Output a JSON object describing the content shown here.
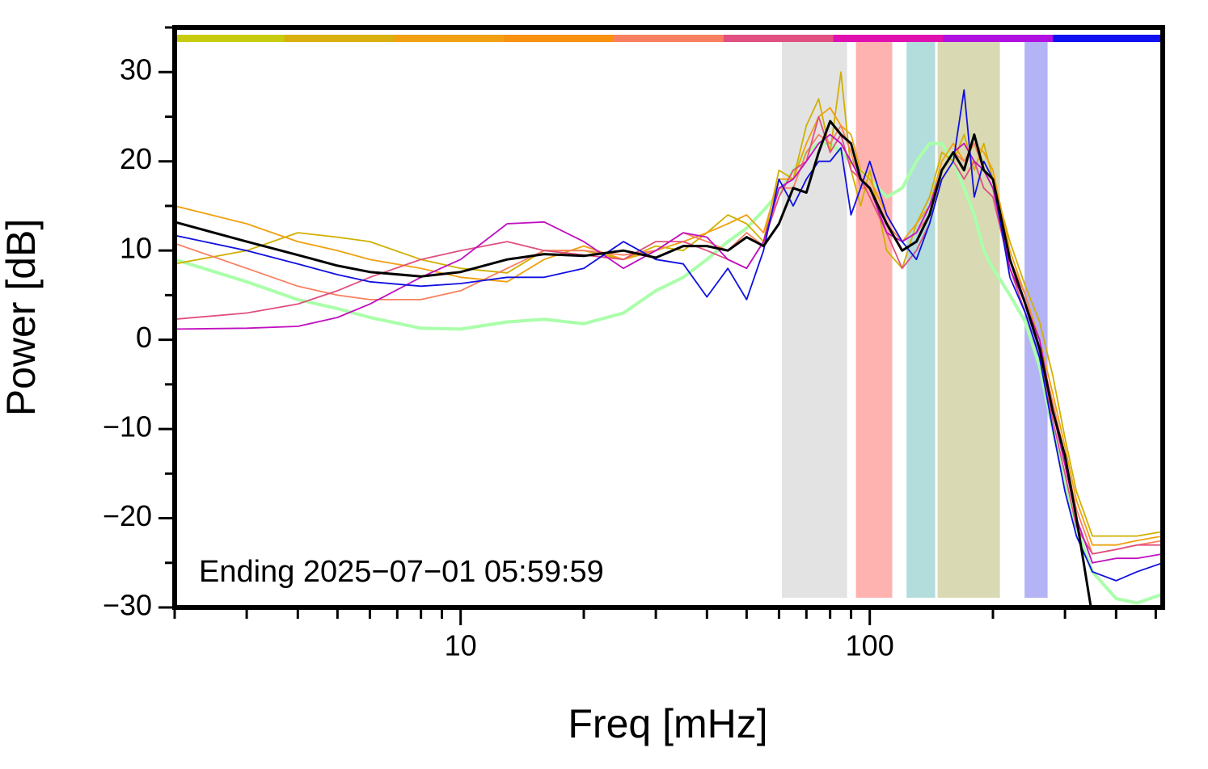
{
  "chart_data": {
    "type": "line",
    "xlabel": "Freq [mHz]",
    "ylabel": "Power [dB]",
    "annotation": "Ending 2025−07−01 05:59:59",
    "xscale": "log",
    "xlim": [
      2,
      520
    ],
    "ylim": [
      -30,
      35
    ],
    "xticks": [
      10,
      100
    ],
    "xminor": [
      2,
      3,
      4,
      5,
      6,
      7,
      8,
      9,
      20,
      30,
      40,
      50,
      60,
      70,
      80,
      90,
      200,
      300,
      400,
      500
    ],
    "yticks": [
      {
        "value": -30,
        "label": "−30"
      },
      {
        "value": -20,
        "label": "−20"
      },
      {
        "value": -10,
        "label": "−10"
      },
      0,
      10,
      20,
      30
    ],
    "yminor": [
      -25,
      -15,
      -5,
      5,
      15,
      25,
      35
    ],
    "color_bar": [
      "#c8cc10",
      "#d8b010",
      "#f0a010",
      "#f89010",
      "#f88060",
      "#e05080",
      "#e010b0",
      "#b010e0",
      "#1010f0"
    ],
    "bands": [
      {
        "x": [
          61,
          88
        ],
        "color": "#e3e3e3"
      },
      {
        "x": [
          92.5,
          113.5
        ],
        "color": "#ffb3b0"
      },
      {
        "x": [
          123,
          144.5
        ],
        "color": "#b3dcdc"
      },
      {
        "x": [
          146.5,
          208
        ],
        "color": "#d9d9b3"
      },
      {
        "x": [
          239,
          272
        ],
        "color": "#b3b3f5"
      }
    ],
    "x": [
      2,
      3,
      4,
      5,
      6,
      8,
      10,
      13,
      16,
      20,
      25,
      30,
      35,
      40,
      45,
      50,
      55,
      60,
      65,
      70,
      75,
      80,
      85,
      90,
      95,
      100,
      110,
      120,
      130,
      140,
      150,
      160,
      170,
      180,
      190,
      200,
      220,
      240,
      260,
      280,
      300,
      320,
      350,
      400,
      450,
      520
    ],
    "series": [
      {
        "color": "#aaffaa",
        "width": 4,
        "values": [
          9,
          6.5,
          4.5,
          3.5,
          2.5,
          1.3,
          1.2,
          2,
          2.3,
          1.8,
          3,
          5.5,
          7,
          9,
          11,
          12.5,
          14.5,
          16.5,
          19,
          21,
          22,
          22,
          21,
          20,
          19,
          18,
          16,
          17,
          20,
          22,
          22,
          20,
          17,
          14,
          10,
          8,
          5,
          2,
          -3,
          -10,
          -16,
          -21,
          -26,
          -29,
          -29.5,
          -28.5
        ]
      },
      {
        "color": "#d0b000",
        "width": 1.8,
        "values": [
          8.5,
          10,
          12,
          11.5,
          11,
          9,
          8,
          7.5,
          10,
          10,
          9,
          10.5,
          10,
          12,
          14,
          13,
          11,
          19,
          18,
          24,
          27,
          21,
          30,
          19,
          15,
          19,
          10,
          8,
          13,
          16,
          21,
          20,
          23,
          19,
          22,
          18,
          11,
          6,
          2,
          -4,
          -11,
          -17,
          -22,
          -22,
          -22,
          -21.5
        ]
      },
      {
        "color": "#f0a010",
        "width": 1.8,
        "values": [
          15,
          13,
          11,
          10,
          9,
          8,
          7,
          6.5,
          9,
          10.5,
          9,
          10,
          11,
          12,
          13,
          14,
          12,
          18,
          18,
          22,
          25,
          26,
          24,
          23,
          19,
          18,
          14,
          11,
          13,
          15,
          20,
          22,
          20,
          22,
          21,
          19,
          10,
          5,
          0,
          -6,
          -12,
          -18,
          -23,
          -23,
          -22.5,
          -22
        ]
      },
      {
        "color": "#f88060",
        "width": 1.8,
        "values": [
          10.8,
          8,
          6,
          5,
          4.5,
          4.5,
          5.5,
          8,
          10,
          10,
          9.5,
          10,
          12,
          11,
          10,
          12,
          10.5,
          17,
          17,
          21,
          23,
          22,
          24,
          21,
          17,
          17,
          13,
          11,
          12,
          14,
          19,
          21,
          20,
          22,
          19,
          18,
          9,
          5,
          -1,
          -7,
          -13,
          -19,
          -24,
          -23.5,
          -23,
          -22.5
        ]
      },
      {
        "color": "#e05080",
        "width": 1.8,
        "values": [
          2.3,
          3,
          4,
          5.5,
          7,
          9,
          10,
          11,
          10,
          9.5,
          9,
          11,
          11,
          10,
          9,
          8,
          11,
          16,
          19,
          20,
          25,
          21,
          23,
          19,
          18,
          16,
          12,
          8,
          10,
          13,
          18,
          20,
          18,
          20,
          17,
          16,
          8,
          3,
          -2,
          -9,
          -15,
          -21,
          -24,
          -23.5,
          -23,
          -23
        ]
      },
      {
        "color": "#c010c0",
        "width": 1.8,
        "values": [
          1.2,
          1.3,
          1.5,
          2.5,
          4,
          7,
          9,
          13,
          13.2,
          11,
          8,
          10,
          12,
          11.5,
          9,
          8,
          11,
          17,
          18,
          20,
          22,
          23,
          22,
          20,
          18,
          17,
          12,
          11,
          12,
          15,
          19,
          21,
          22,
          20,
          19,
          17,
          8,
          4,
          0,
          -8,
          -14,
          -20,
          -25,
          -24.5,
          -24.5,
          -24
        ]
      },
      {
        "color": "#1010e0",
        "width": 1.8,
        "values": [
          11.7,
          10,
          8.5,
          7.3,
          6.5,
          6,
          6.3,
          7,
          7,
          8,
          11,
          9,
          8.5,
          4.8,
          8,
          4.5,
          10,
          18,
          15,
          18,
          20,
          20,
          21.5,
          14,
          17,
          20,
          14,
          11,
          9,
          13,
          18,
          20,
          28,
          16,
          20,
          18,
          7,
          3,
          -2,
          -10,
          -17,
          -22,
          -26,
          -27,
          -26,
          -25
        ]
      },
      {
        "color": "#000000",
        "width": 3,
        "values": [
          13.2,
          11,
          9.5,
          8.3,
          7.6,
          7.1,
          7.6,
          9,
          9.6,
          9.4,
          10,
          9.2,
          10.5,
          10.5,
          10,
          11.5,
          10.5,
          13,
          17,
          16.5,
          21,
          24.5,
          23,
          22,
          18,
          17,
          13,
          10,
          11,
          14,
          19,
          21,
          19,
          23,
          19,
          18,
          9,
          4,
          -1,
          -8,
          -13,
          -20,
          -31,
          null,
          null,
          null
        ]
      }
    ]
  }
}
